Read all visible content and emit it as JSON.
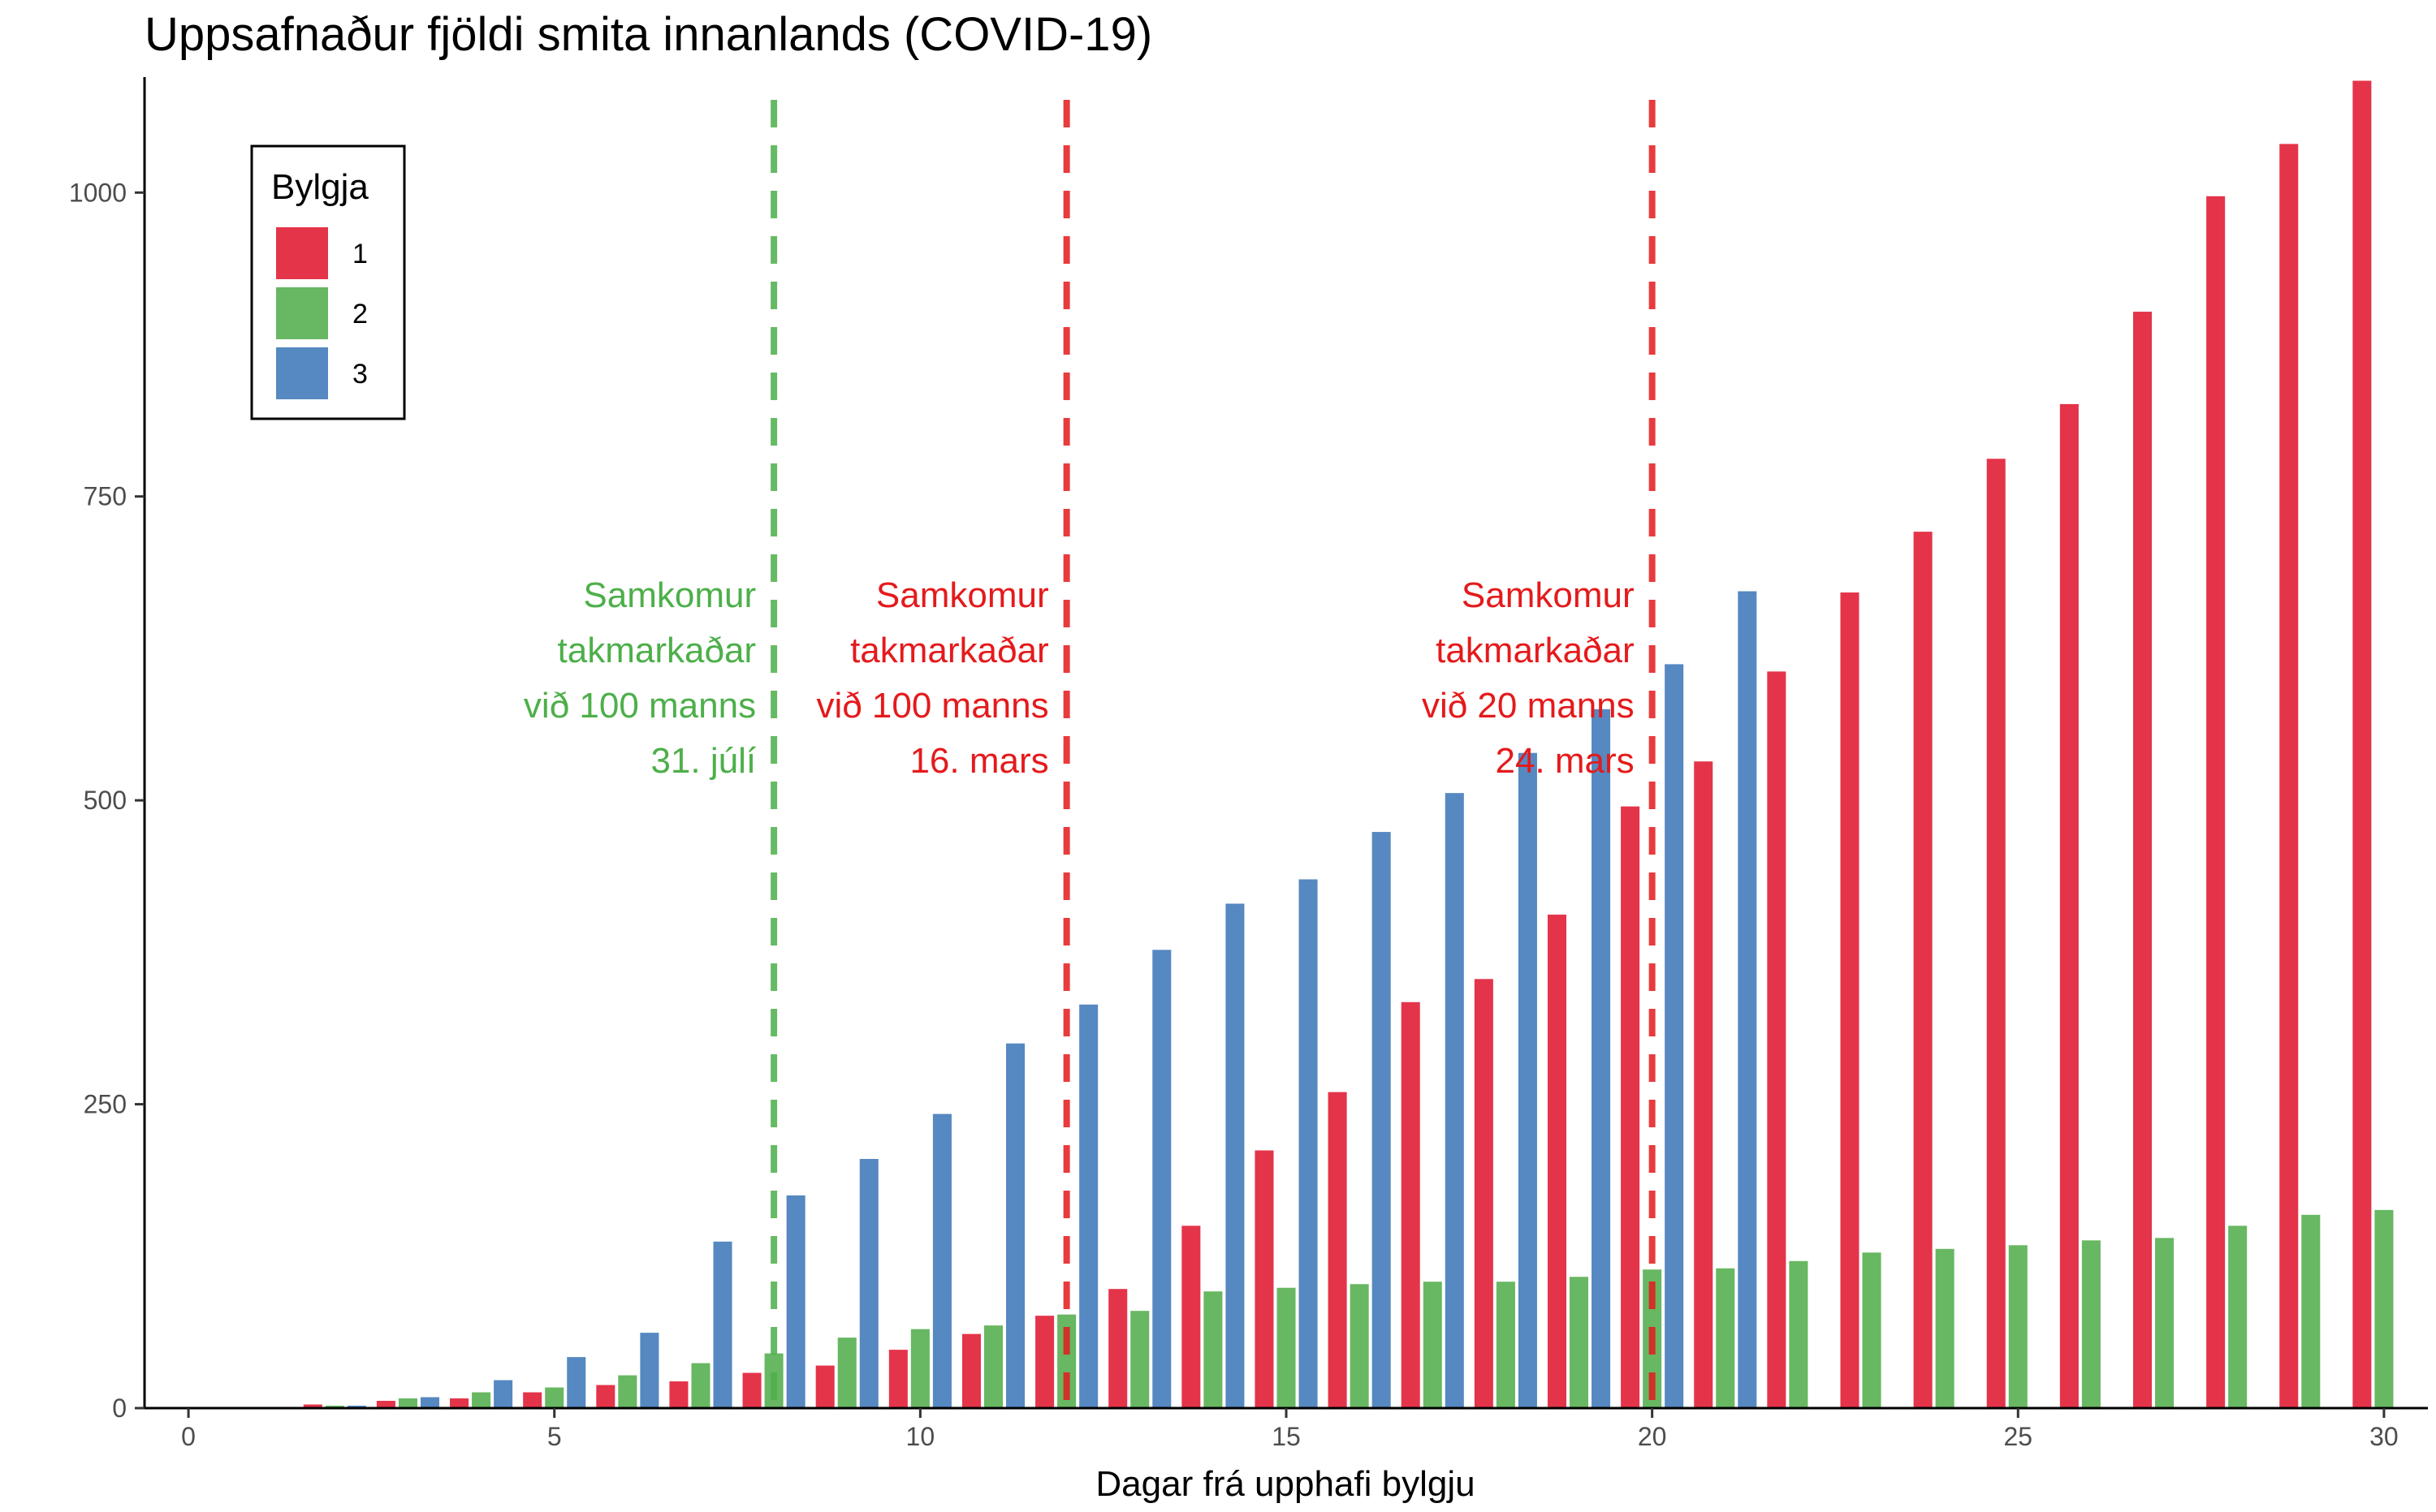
{
  "chart_data": {
    "type": "bar",
    "title": "Uppsafnaður fjöldi smita innanlands (COVID-19)",
    "xlabel": "Dagar frá upphafi bylgju",
    "ylabel": "",
    "xlim": [
      -0.6,
      30.6
    ],
    "ylim": [
      0,
      1095
    ],
    "x_ticks": [
      0,
      5,
      10,
      15,
      20,
      25,
      30
    ],
    "y_ticks": [
      0,
      250,
      500,
      750,
      1000
    ],
    "grid": false,
    "legend": {
      "title": "Bylgja",
      "position": "top-left"
    },
    "series": [
      {
        "name": "1",
        "color": "#E4344A",
        "x": [
          0,
          1,
          2,
          3,
          4,
          5,
          6,
          7,
          8,
          9,
          10,
          11,
          12,
          13,
          14,
          15,
          16,
          17,
          18,
          19,
          20,
          21,
          22,
          23,
          24,
          25,
          26,
          27,
          28,
          29,
          30
        ],
        "values": [
          1,
          1,
          3,
          6,
          8,
          13,
          19,
          22,
          29,
          35,
          48,
          61,
          76,
          98,
          150,
          212,
          260,
          334,
          353,
          406,
          495,
          532,
          606,
          671,
          721,
          781,
          826,
          902,
          997,
          1040,
          1092
        ]
      },
      {
        "name": "2",
        "color": "#68B762",
        "x": [
          0,
          1,
          2,
          3,
          4,
          5,
          6,
          7,
          8,
          9,
          10,
          11,
          12,
          13,
          14,
          15,
          16,
          17,
          18,
          19,
          20,
          21,
          22,
          23,
          24,
          25,
          26,
          27,
          28,
          29,
          30
        ],
        "values": [
          0,
          1,
          2,
          8,
          13,
          17,
          27,
          37,
          45,
          58,
          65,
          68,
          77,
          80,
          96,
          99,
          102,
          104,
          104,
          108,
          114,
          115,
          121,
          128,
          131,
          134,
          138,
          140,
          150,
          159,
          163
        ]
      },
      {
        "name": "3",
        "color": "#5688C1",
        "x": [
          0,
          1,
          2,
          3,
          4,
          5,
          6,
          7,
          8,
          9,
          10,
          11,
          12,
          13,
          14,
          15,
          16,
          17,
          18,
          19,
          20,
          21
        ],
        "values": [
          0,
          1,
          2,
          9,
          23,
          42,
          62,
          137,
          175,
          205,
          242,
          300,
          332,
          377,
          415,
          435,
          474,
          506,
          539,
          575,
          612,
          672
        ]
      }
    ],
    "annotations": [
      {
        "x": 8,
        "color": "#4DAF4A",
        "lines": [
          "Samkomur",
          "takmarkaðar",
          "við 100 manns",
          "31. júlí"
        ]
      },
      {
        "x": 12,
        "color": "#E41A1C",
        "lines": [
          "Samkomur",
          "takmarkaðar",
          "við 100 manns",
          "16. mars"
        ]
      },
      {
        "x": 20,
        "color": "#E41A1C",
        "lines": [
          "Samkomur",
          "takmarkaðar",
          "við 20 manns",
          "24. mars"
        ]
      }
    ]
  }
}
